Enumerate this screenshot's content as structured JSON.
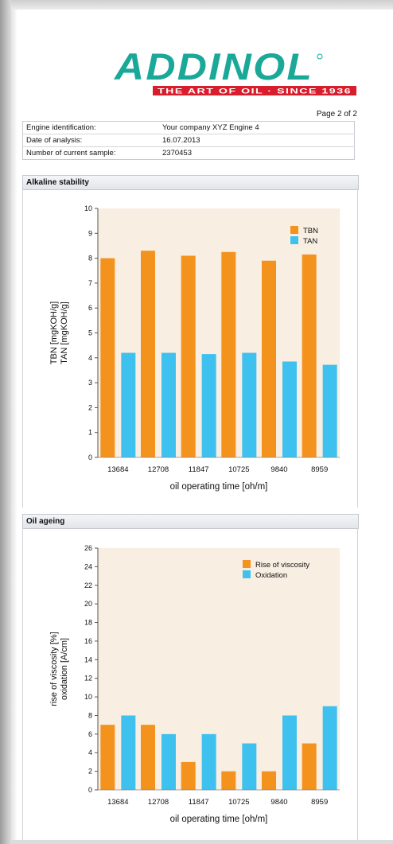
{
  "logo": {
    "brand": "ADDINOL",
    "tagline": "THE ART OF OIL · SINCE 1936"
  },
  "page": {
    "number_label": "Page 2 of 2"
  },
  "engine_info": [
    {
      "label": "Engine identification:",
      "value": "Your company XYZ Engine 4"
    },
    {
      "label": "Date of analysis:",
      "value": "16.07.2013"
    },
    {
      "label": "Number of current sample:",
      "value": "2370453"
    }
  ],
  "colors": {
    "orange": "#f4921e",
    "blue": "#3fc1ef",
    "plot_bg": "#f8eee1"
  },
  "sections": {
    "alkaline": "Alkaline stability",
    "ageing": "Oil ageing"
  },
  "chart_data": [
    {
      "type": "bar",
      "categories": [
        "13684",
        "12708",
        "11847",
        "10725",
        "9840",
        "8959"
      ],
      "series": [
        {
          "name": "TBN",
          "values": [
            8.0,
            8.3,
            8.1,
            8.25,
            7.9,
            8.15
          ]
        },
        {
          "name": "TAN",
          "values": [
            4.2,
            4.2,
            4.15,
            4.2,
            3.85,
            3.72
          ]
        }
      ],
      "ylabel_lines": [
        "TBN [mgKOH/g]",
        "TAN [mgKOH/g]"
      ],
      "xlabel": "oil operating time [oh/m]",
      "ylim": [
        0,
        10
      ],
      "yticks": [
        0,
        1,
        2,
        3,
        4,
        5,
        6,
        7,
        8,
        9,
        10
      ],
      "legend": "top-right",
      "grid": false
    },
    {
      "type": "bar",
      "categories": [
        "13684",
        "12708",
        "11847",
        "10725",
        "9840",
        "8959"
      ],
      "series": [
        {
          "name": "Rise of viscosity",
          "values": [
            7,
            7,
            3,
            2,
            2,
            5
          ]
        },
        {
          "name": "Oxidation",
          "values": [
            8,
            6,
            6,
            5,
            8,
            9
          ]
        }
      ],
      "ylabel_lines": [
        "rise of viscosity [%]",
        "oxidation [A/cm]"
      ],
      "xlabel": "oil operating time [oh/m]",
      "ylim": [
        0,
        26
      ],
      "yticks": [
        0,
        2,
        4,
        6,
        8,
        10,
        12,
        14,
        16,
        18,
        20,
        22,
        24,
        26
      ],
      "legend": "top-right",
      "grid": false
    }
  ]
}
